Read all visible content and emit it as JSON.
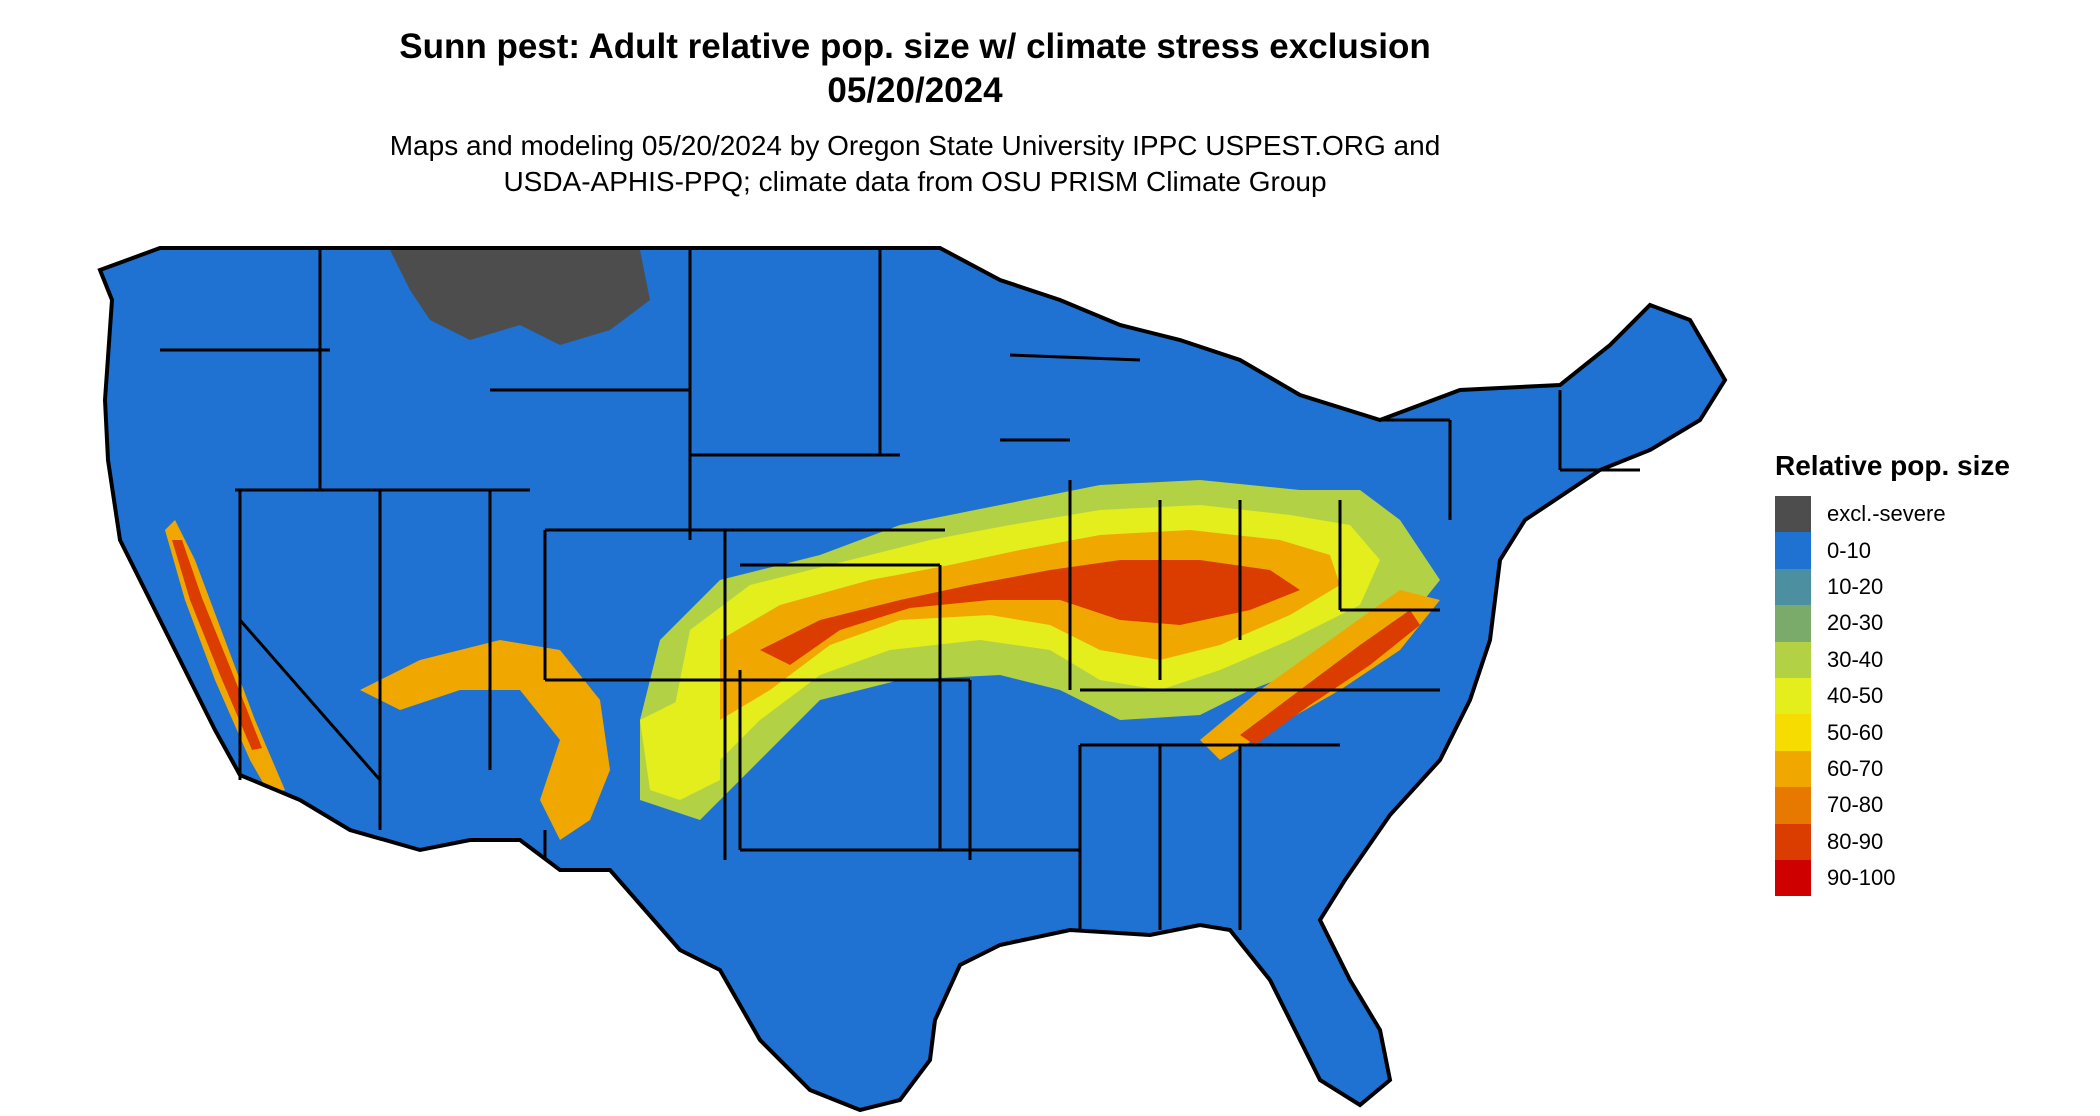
{
  "title": {
    "line1": "Sunn pest: Adult relative pop. size w/ climate stress exclusion",
    "line2": "05/20/2024"
  },
  "subtitle": {
    "line1": "Maps and modeling 05/20/2024 by Oregon State University IPPC USPEST.ORG and",
    "line2": "USDA-APHIS-PPQ; climate data from OSU PRISM Climate Group"
  },
  "legend": {
    "title": "Relative pop. size",
    "items": [
      {
        "label": "excl.-severe",
        "color": "#4d4d4d"
      },
      {
        "label": "0-10",
        "color": "#1f72d1"
      },
      {
        "label": "10-20",
        "color": "#4b8fa0"
      },
      {
        "label": "20-30",
        "color": "#7aab6b"
      },
      {
        "label": "30-40",
        "color": "#b3d145"
      },
      {
        "label": "40-50",
        "color": "#e3ee1c"
      },
      {
        "label": "50-60",
        "color": "#f7dc00"
      },
      {
        "label": "60-70",
        "color": "#f0a800"
      },
      {
        "label": "70-80",
        "color": "#e77800"
      },
      {
        "label": "80-90",
        "color": "#db3d00"
      },
      {
        "label": "90-100",
        "color": "#cf0000"
      }
    ]
  },
  "map": {
    "region": "contiguous-united-states",
    "base_color": "#1f72d1",
    "border_color": "#000000"
  }
}
